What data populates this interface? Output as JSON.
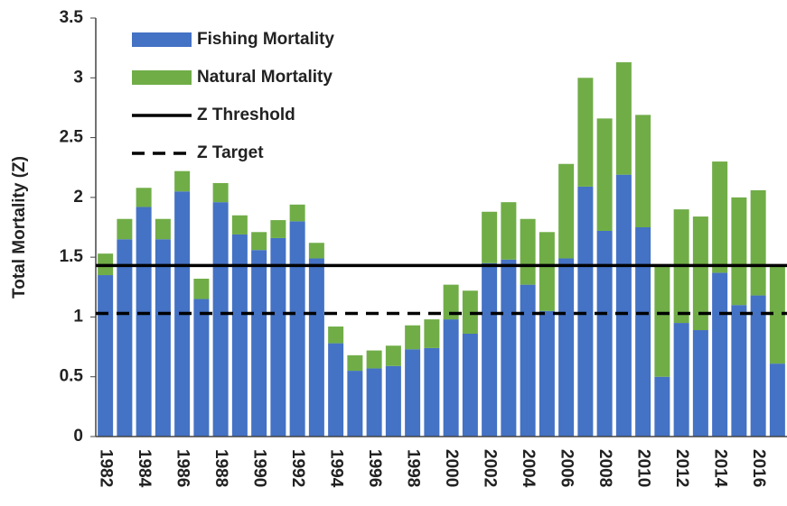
{
  "chart_data": {
    "type": "stacked_bar",
    "y_label": "Total Mortality (Z)",
    "categories": [
      "1982",
      null,
      "1984",
      null,
      "1986",
      null,
      "1988",
      null,
      "1990",
      null,
      "1992",
      null,
      "1994",
      null,
      "1996",
      null,
      "1998",
      null,
      "2000",
      null,
      "2002",
      null,
      "2004",
      null,
      "2006",
      null,
      "2008",
      null,
      "2010",
      null,
      "2012",
      null,
      "2014",
      null,
      "2016",
      null
    ],
    "series": [
      {
        "name": "Fishing Mortality",
        "color": "#4472c4",
        "values": [
          1.35,
          1.65,
          1.92,
          1.65,
          2.05,
          1.15,
          1.96,
          1.69,
          1.56,
          1.66,
          1.8,
          1.49,
          0.78,
          0.55,
          0.57,
          0.59,
          0.73,
          0.74,
          0.98,
          0.86,
          1.45,
          1.48,
          1.27,
          1.05,
          1.49,
          2.09,
          1.72,
          2.19,
          1.75,
          0.5,
          0.95,
          0.89,
          1.37,
          1.1,
          1.18,
          0.61
        ]
      },
      {
        "name": "Natural Mortality",
        "color": "#70ad47",
        "values": [
          0.18,
          0.17,
          0.16,
          0.17,
          0.17,
          0.17,
          0.16,
          0.16,
          0.15,
          0.15,
          0.14,
          0.13,
          0.14,
          0.13,
          0.15,
          0.17,
          0.2,
          0.24,
          0.29,
          0.36,
          0.43,
          0.48,
          0.55,
          0.66,
          0.79,
          0.91,
          0.94,
          0.94,
          0.94,
          0.94,
          0.95,
          0.95,
          0.93,
          0.9,
          0.88,
          0.82
        ]
      }
    ],
    "lines": [
      {
        "name": "Z Threshold",
        "value": 1.43,
        "color": "#000000",
        "dashed": false
      },
      {
        "name": "Z Target",
        "value": 1.03,
        "color": "#000000",
        "dashed": true
      }
    ],
    "ylim": [
      0,
      3.5
    ],
    "yticks": [
      0,
      0.5,
      1,
      1.5,
      2,
      2.5,
      3,
      3.5
    ],
    "grid": false,
    "legend": "top-left"
  }
}
